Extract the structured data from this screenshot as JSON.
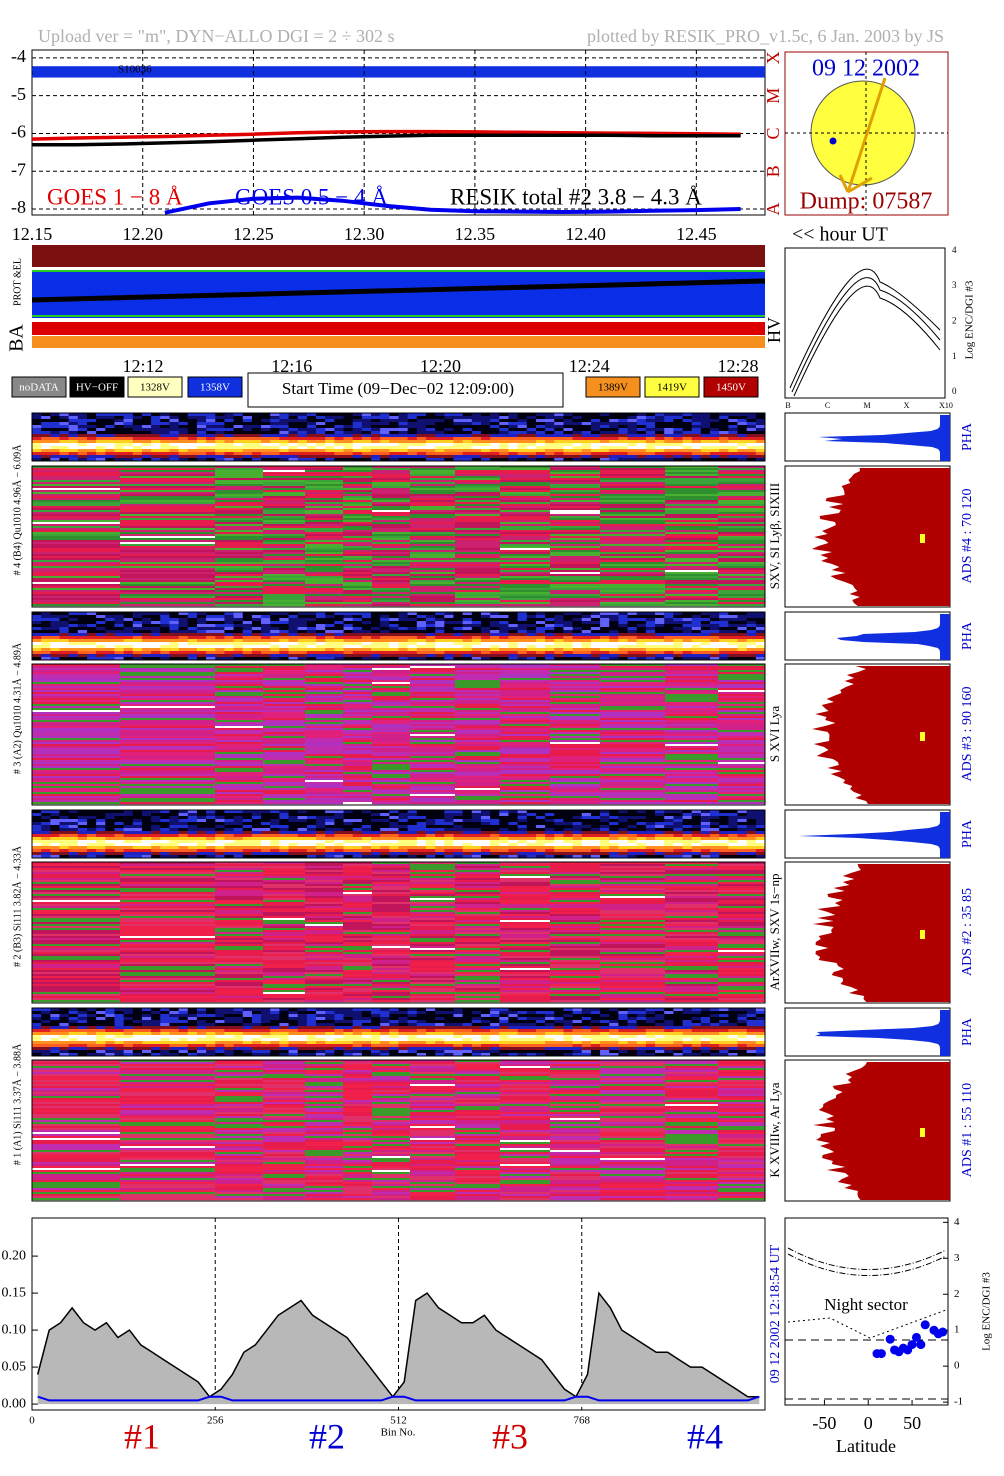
{
  "header": {
    "upload": "Upload ver = \"m\", DYN−ALLO DGI =   2 ÷ 302 s",
    "plotted": "plotted by RESIK_PRO_v1.5c, 6 Jan. 2003 by JS"
  },
  "sun": {
    "date": "09 12 2002",
    "dump": "Dump: 07587"
  },
  "strip": {
    "label": "BA",
    "sublabel": "PROT &EL",
    "time_ticks": [
      "12:12",
      "12:16",
      "12:20",
      "12:24",
      "12:28"
    ]
  },
  "legend": [
    "noDATA",
    "HV−OFF",
    "1328V",
    "1358V",
    "1389V",
    "1419V",
    "1450V"
  ],
  "start_time": "Start Time (09−Dec−02 12:09:00)",
  "hv_panel": {
    "label": "HV",
    "ylabel": "Log ENC/DGI #3",
    "yticks": [
      0,
      1,
      2,
      3,
      4
    ],
    "xlabels": [
      "B",
      "C",
      "M",
      "X",
      "X10"
    ]
  },
  "detectors": [
    {
      "label": "# 4 (B4) Qu1010  4.96Å − 6.09Å",
      "lines": "SXV, SI Lyβ, SIXIII",
      "pha": "PHA",
      "ads": "ADS #4 :   70  120"
    },
    {
      "label": "# 3 (A2) Qu1010  4.31Å − 4.89Å",
      "lines": "S XVI Lya",
      "pha": "PHA",
      "ads": "ADS #3 :   90  160"
    },
    {
      "label": "# 2 (B3) Si111  3.82Å − 4.33Å",
      "lines": "ArXVIIw, SXV 1s−np",
      "pha": "PHA",
      "ads": "ADS #2 :   35   85"
    },
    {
      "label": "# 1 (A1) Si111  3.37Å − 3.88Å",
      "lines": "K XVIIIw, Ar Lya",
      "pha": "PHA",
      "ads": "ADS #1 :   55  110"
    }
  ],
  "chart_data": [
    {
      "type": "line",
      "xlabel": "<< hour UT",
      "annotation": "S10036",
      "x": [
        12.15,
        12.17,
        12.19,
        12.21,
        12.23,
        12.25,
        12.27,
        12.29,
        12.31,
        12.33,
        12.35,
        12.37,
        12.39,
        12.41,
        12.43,
        12.45,
        12.47
      ],
      "series": [
        {
          "name": "GOES 1 − 8 Å",
          "color": "#e00000",
          "values": [
            -6.15,
            -6.12,
            -6.1,
            -6.08,
            -6.05,
            -6.02,
            -5.98,
            -5.96,
            -5.95,
            -5.95,
            -5.96,
            -5.97,
            -5.98,
            -5.99,
            -6.0,
            -6.01,
            -6.02
          ]
        },
        {
          "name": "GOES 0.5 − 4 Å",
          "color": "#0000ee",
          "values": [
            null,
            null,
            null,
            -8.1,
            -7.85,
            -7.73,
            -7.7,
            -7.78,
            -7.92,
            -8.02,
            -8.06,
            -8.07,
            -8.08,
            -8.07,
            -8.05,
            -8.03,
            -8.0
          ]
        },
        {
          "name": "RESIK total #2  3.8 − 4.3 Å",
          "color": "#000000",
          "values": [
            -6.3,
            -6.3,
            -6.28,
            -6.25,
            -6.22,
            -6.18,
            -6.14,
            -6.1,
            -6.07,
            -6.05,
            -6.05,
            -6.05,
            -6.05,
            -6.05,
            -6.06,
            -6.06,
            -6.06
          ]
        }
      ],
      "xlim": [
        12.15,
        12.481
      ],
      "xticks": [
        12.15,
        {
          "value": 12.2,
          "label": "12.20"
        },
        12.25,
        {
          "value": 12.3,
          "label": "12.30"
        },
        12.35,
        {
          "value": 12.4,
          "label": "12.40"
        },
        12.45
      ],
      "ylim": [
        -8.16,
        -3.79
      ],
      "yticks": [
        -8,
        -7,
        -6,
        -5,
        -4
      ],
      "y2lim": [
        -8.16,
        -3.79
      ],
      "y2ticks": [
        {
          "value": -8,
          "label": "A"
        },
        {
          "value": -7,
          "label": "B"
        },
        {
          "value": -6,
          "label": "C"
        },
        {
          "value": -5,
          "label": "M"
        },
        {
          "value": -4,
          "label": "X"
        }
      ],
      "grid": true
    },
    {
      "type": "area",
      "xlabel": "Bin No.",
      "y2label": "09 12 2002   12:18:54 UT",
      "groups": [
        {
          "label": "#1",
          "color": "#d00000"
        },
        {
          "label": "#2",
          "color": "#0000d0"
        },
        {
          "label": "#3",
          "color": "#d00000"
        },
        {
          "label": "#4",
          "color": "#0000d0"
        }
      ],
      "x": [
        8,
        24,
        40,
        56,
        72,
        88,
        104,
        120,
        136,
        152,
        168,
        184,
        200,
        216,
        232,
        248,
        264,
        280,
        296,
        312,
        328,
        344,
        360,
        376,
        392,
        408,
        424,
        440,
        456,
        472,
        488,
        504,
        520,
        536,
        552,
        568,
        584,
        600,
        616,
        632,
        648,
        664,
        680,
        696,
        712,
        728,
        744,
        760,
        776,
        792,
        808,
        824,
        840,
        856,
        872,
        888,
        904,
        920,
        936,
        952,
        968,
        984,
        1000,
        1016
      ],
      "series": [
        {
          "color": "#000000",
          "values": [
            0.04,
            0.1,
            0.11,
            0.13,
            0.11,
            0.1,
            0.11,
            0.09,
            0.1,
            0.08,
            0.07,
            0.06,
            0.05,
            0.04,
            0.03,
            0.01,
            0.02,
            0.04,
            0.07,
            0.08,
            0.1,
            0.12,
            0.13,
            0.14,
            0.12,
            0.11,
            0.1,
            0.09,
            0.07,
            0.05,
            0.03,
            0.01,
            0.03,
            0.14,
            0.15,
            0.13,
            0.12,
            0.11,
            0.11,
            0.12,
            0.1,
            0.09,
            0.08,
            0.07,
            0.06,
            0.04,
            0.02,
            0.01,
            0.04,
            0.15,
            0.13,
            0.1,
            0.09,
            0.08,
            0.07,
            0.07,
            0.06,
            0.05,
            0.05,
            0.04,
            0.03,
            0.02,
            0.01,
            0.01
          ]
        },
        {
          "color": "#0000ee",
          "values": [
            0.01,
            0.005,
            0.005,
            0.005,
            0.005,
            0.005,
            0.005,
            0.005,
            0.005,
            0.005,
            0.005,
            0.005,
            0.005,
            0.005,
            0.005,
            0.01,
            0.01,
            0.005,
            0.005,
            0.005,
            0.005,
            0.005,
            0.005,
            0.005,
            0.005,
            0.005,
            0.005,
            0.005,
            0.005,
            0.005,
            0.005,
            0.01,
            0.01,
            0.005,
            0.005,
            0.005,
            0.005,
            0.005,
            0.005,
            0.005,
            0.005,
            0.005,
            0.005,
            0.005,
            0.005,
            0.005,
            0.005,
            0.01,
            0.01,
            0.005,
            0.005,
            0.005,
            0.005,
            0.005,
            0.005,
            0.005,
            0.005,
            0.005,
            0.005,
            0.005,
            0.005,
            0.005,
            0.005,
            0.01
          ]
        }
      ],
      "xlim": [
        0,
        1024
      ],
      "xticks": [
        0,
        256,
        512,
        768
      ],
      "ylim": [
        -0.008,
        0.2515
      ],
      "yticks": [
        {
          "value": 0,
          "label": "0.00"
        },
        {
          "value": 0.05,
          "label": "0.05"
        },
        {
          "value": 0.1,
          "label": "0.10"
        },
        {
          "value": 0.15,
          "label": "0.15"
        },
        {
          "value": 0.2,
          "label": "0.20"
        }
      ],
      "grid": true
    },
    {
      "type": "scatter",
      "xlabel": "Latitude",
      "ylabel": "Log ENC/DGI #3",
      "annotation": "Night sector",
      "x": [
        10,
        15,
        25,
        30,
        35,
        40,
        45,
        50,
        55,
        60,
        65,
        75,
        80,
        85
      ],
      "series": [
        {
          "color": "#0000ee",
          "values": [
            0.35,
            0.35,
            0.75,
            0.45,
            0.4,
            0.5,
            0.45,
            0.6,
            0.8,
            0.6,
            1.15,
            1.0,
            0.9,
            0.95
          ]
        }
      ],
      "xlim": [
        -95,
        91
      ],
      "xticks": [
        -50,
        0,
        50
      ],
      "ylim": [
        -1.08,
        4.12
      ],
      "yticks": [
        -1,
        0,
        1,
        2,
        3,
        4
      ]
    }
  ]
}
